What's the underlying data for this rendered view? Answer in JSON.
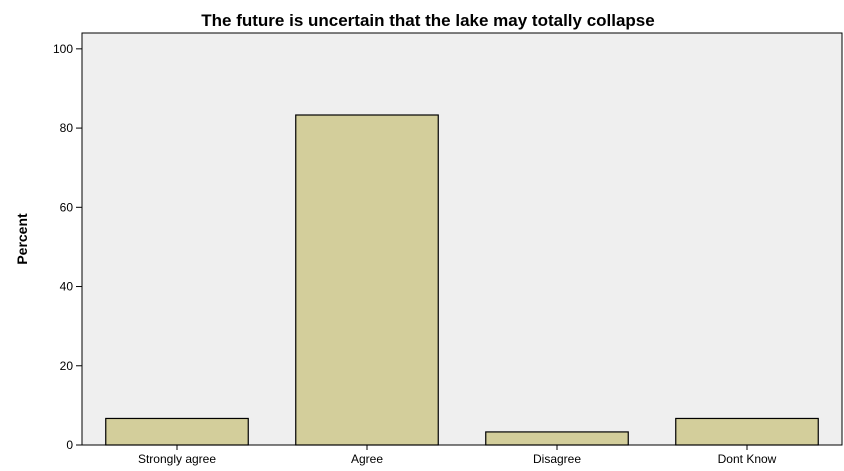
{
  "chart_data": {
    "type": "bar",
    "title": "The future is uncertain that the lake may totally collapse",
    "ylabel": "Percent",
    "xlabel": "",
    "categories": [
      "Strongly agree",
      "Agree",
      "Disagree",
      "Dont Know"
    ],
    "values": [
      6.7,
      83.3,
      3.3,
      6.7
    ],
    "ylim": [
      0,
      104
    ],
    "yticks": [
      "0",
      "20",
      "40",
      "60",
      "80",
      "100"
    ],
    "grid": false,
    "legend": "none",
    "colors": {
      "plot_background": "#efefef",
      "bar_fill": "#d3ce9b",
      "bar_stroke": "#000000",
      "axis": "#000000"
    }
  }
}
